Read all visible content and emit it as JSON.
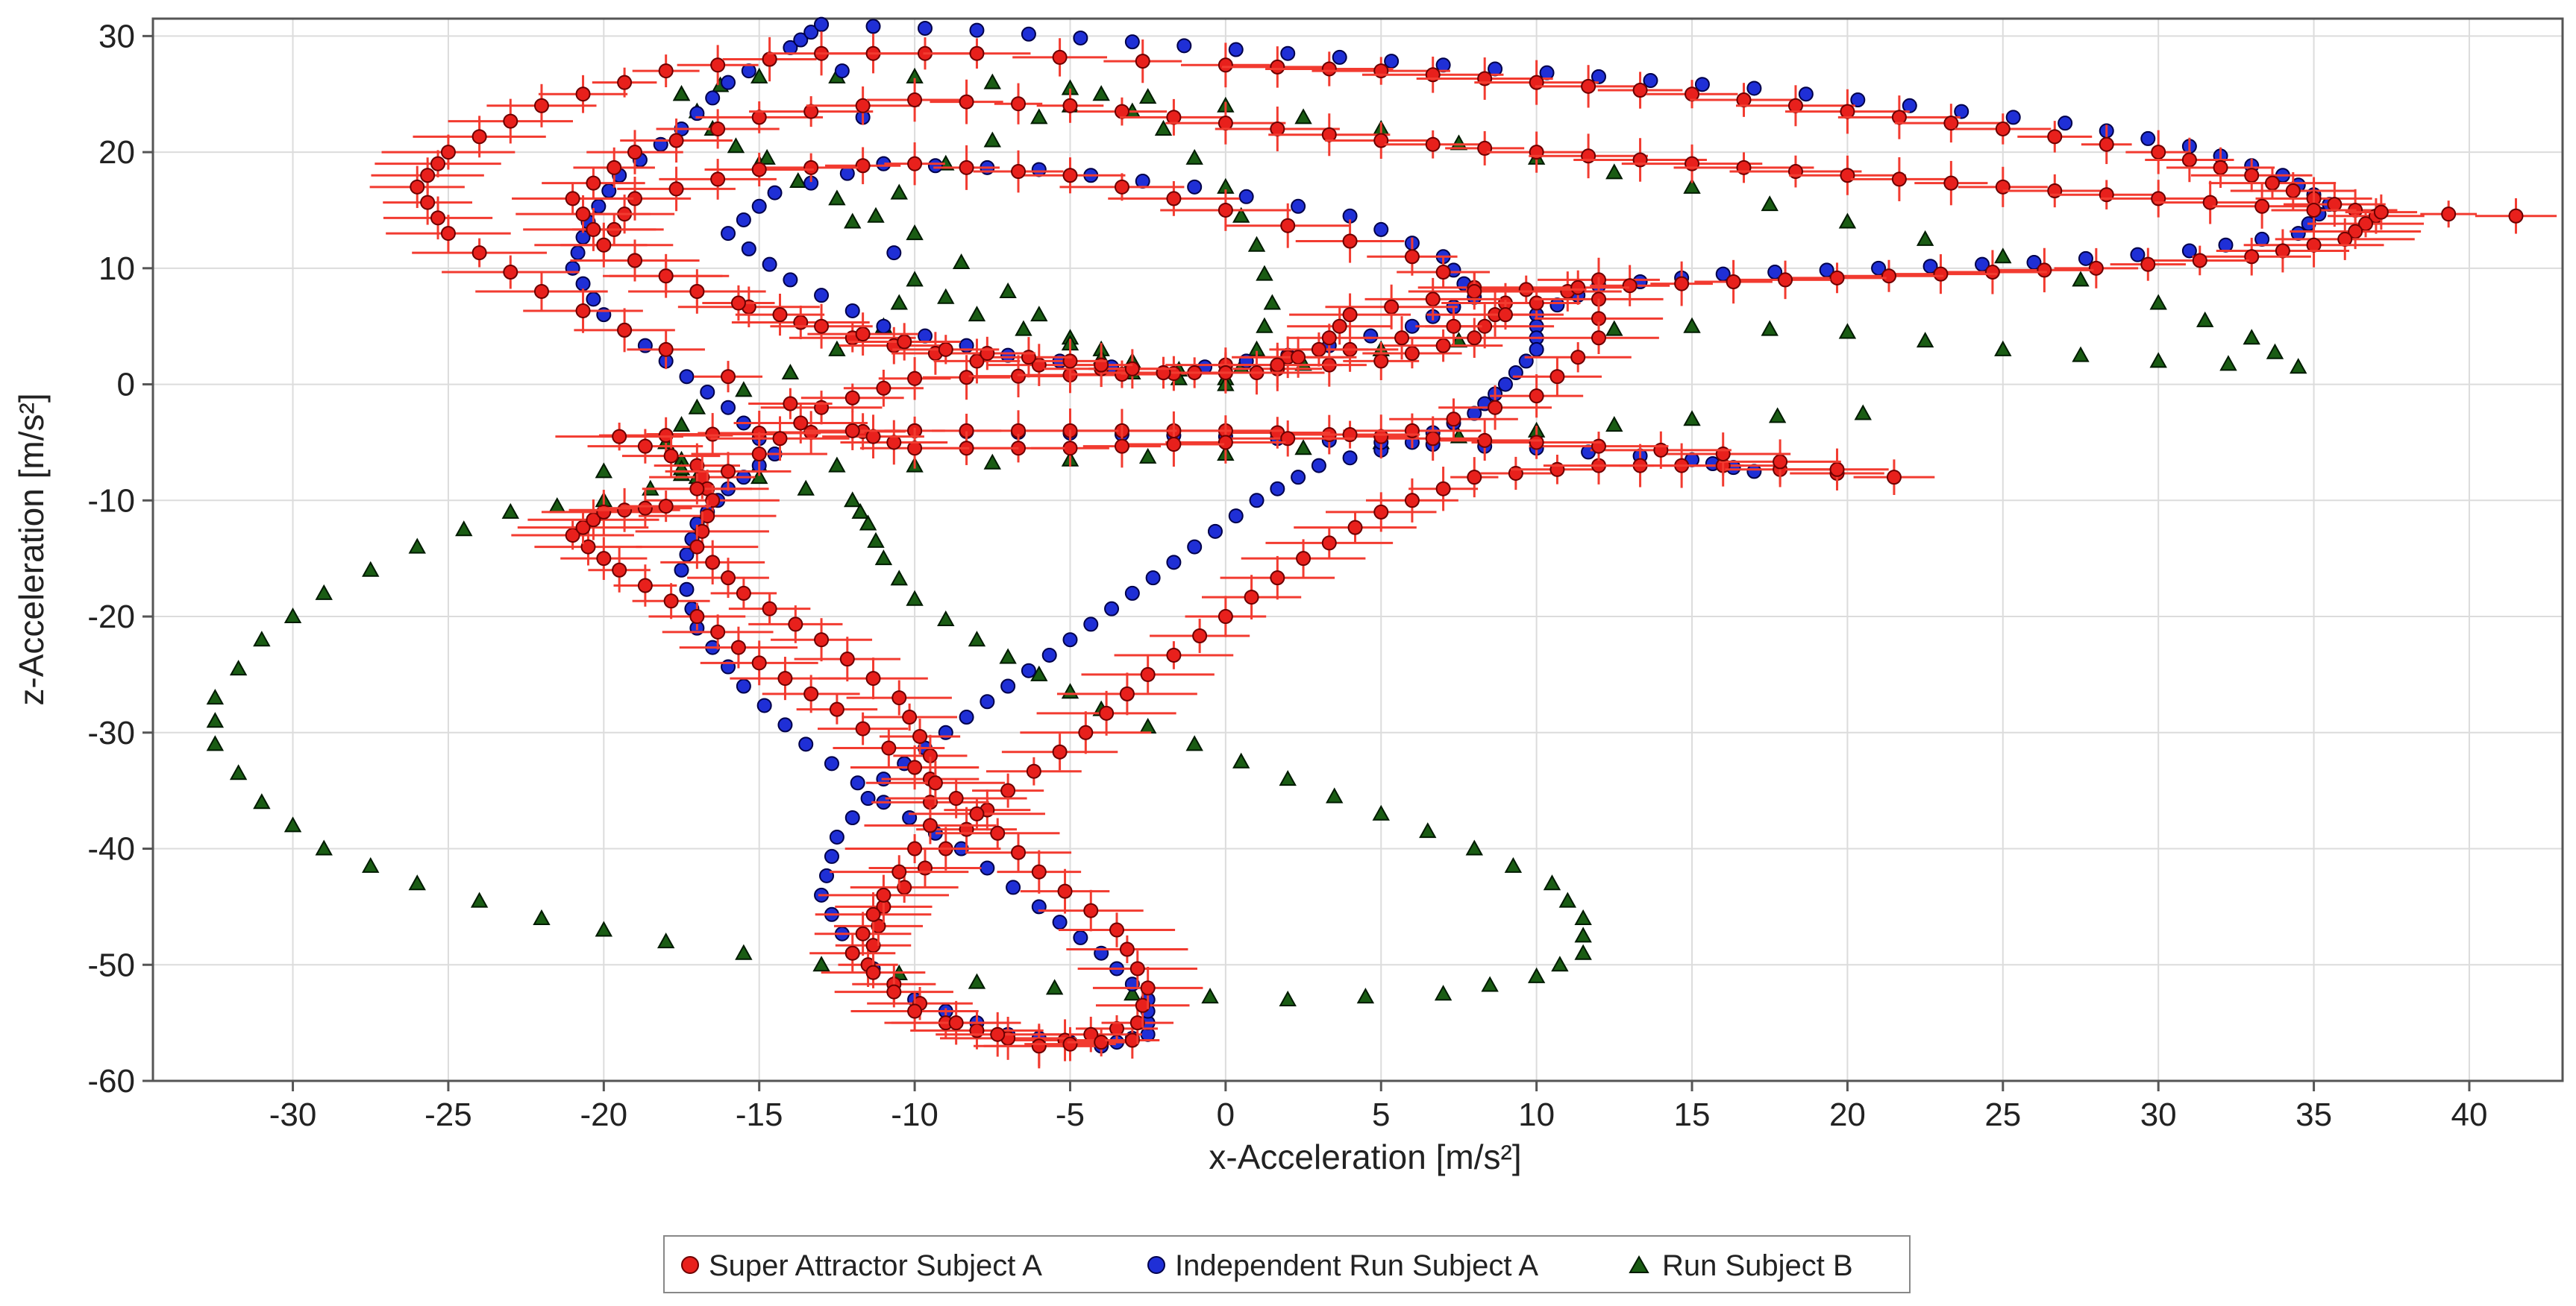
{
  "chart_data": {
    "type": "scatter",
    "title": "",
    "xlabel": "x-Acceleration [m/s²]",
    "ylabel": "z-Acceleration [m/s²]",
    "xlim": [
      -34.5,
      43
    ],
    "ylim": [
      -60,
      31.5
    ],
    "xticks": [
      -30,
      -25,
      -20,
      -15,
      -10,
      -5,
      0,
      5,
      10,
      15,
      20,
      25,
      30,
      35,
      40
    ],
    "yticks": [
      -60,
      -50,
      -40,
      -30,
      -20,
      -10,
      0,
      10,
      20,
      30
    ],
    "grid": true,
    "legend_position": "bottom-center",
    "series": [
      {
        "name": "Super Attractor Subject A",
        "color": "#e8201c",
        "marker": "circle",
        "error_bars": "horizontal and vertical",
        "points": [
          [
            -3.5,
            -55.5
          ],
          [
            -6,
            -57
          ],
          [
            -9,
            -55
          ],
          [
            -11.5,
            -50
          ],
          [
            -11,
            -45
          ],
          [
            -9,
            -40
          ],
          [
            -7,
            -35
          ],
          [
            -4.5,
            -30
          ],
          [
            -2.5,
            -25
          ],
          [
            0,
            -20
          ],
          [
            2.5,
            -15
          ],
          [
            5,
            -11
          ],
          [
            8,
            -8
          ],
          [
            12,
            -7
          ],
          [
            16,
            -7
          ],
          [
            21.5,
            -8
          ],
          [
            16,
            -6
          ],
          [
            10,
            -5
          ],
          [
            5,
            -4.5
          ],
          [
            0,
            -4
          ],
          [
            -5,
            -4
          ],
          [
            -10,
            -4
          ],
          [
            -15,
            -4.2
          ],
          [
            -19.5,
            -4.5
          ],
          [
            -17,
            -7
          ],
          [
            -16.5,
            -10
          ],
          [
            -17,
            -14
          ],
          [
            -15.5,
            -18
          ],
          [
            -13,
            -22
          ],
          [
            -10.5,
            -27
          ],
          [
            -9.5,
            -32
          ],
          [
            -9.5,
            -38
          ],
          [
            -11,
            -44
          ],
          [
            -12,
            -49
          ],
          [
            -10,
            -54
          ],
          [
            -6,
            -57
          ],
          [
            -3,
            -56.5
          ],
          [
            -2.5,
            -52
          ],
          [
            -3.5,
            -47
          ],
          [
            -6,
            -42
          ],
          [
            -8,
            -37
          ],
          [
            -10,
            -33
          ],
          [
            -12.5,
            -28
          ],
          [
            -15,
            -24
          ],
          [
            -17,
            -20
          ],
          [
            -19.5,
            -16
          ],
          [
            -21,
            -13
          ],
          [
            -20,
            -11
          ],
          [
            -18,
            -10.5
          ],
          [
            -15,
            -6
          ],
          [
            -13,
            -2
          ],
          [
            -10,
            0.5
          ],
          [
            -5,
            0.8
          ],
          [
            0,
            1
          ],
          [
            5,
            2
          ],
          [
            8,
            4
          ],
          [
            9,
            7
          ],
          [
            6,
            11
          ],
          [
            0,
            15
          ],
          [
            -5,
            18
          ],
          [
            -10,
            19
          ],
          [
            -15,
            18.5
          ],
          [
            -19,
            16
          ],
          [
            -20,
            12
          ],
          [
            -17,
            8
          ],
          [
            -12,
            4
          ],
          [
            -8,
            2
          ],
          [
            -2,
            1
          ],
          [
            4,
            3
          ],
          [
            9,
            6
          ],
          [
            12,
            9
          ],
          [
            12,
            4
          ],
          [
            10,
            -1
          ],
          [
            6,
            -4
          ],
          [
            0,
            -5
          ],
          [
            -5,
            -5.5
          ],
          [
            -10,
            -5.5
          ],
          [
            -12,
            -4
          ],
          [
            -18,
            3
          ],
          [
            -22,
            8
          ],
          [
            -25,
            13
          ],
          [
            -26,
            17
          ],
          [
            -25,
            20
          ],
          [
            -22,
            24
          ],
          [
            -18,
            27
          ],
          [
            -13,
            28.5
          ],
          [
            -8,
            28.5
          ],
          [
            0,
            27.5
          ],
          [
            5,
            27
          ],
          [
            10,
            26
          ],
          [
            15,
            25
          ],
          [
            20,
            23.5
          ],
          [
            25,
            22
          ],
          [
            30,
            20
          ],
          [
            33,
            18
          ],
          [
            35,
            16
          ],
          [
            37,
            14.5
          ],
          [
            36,
            12.5
          ],
          [
            33,
            11
          ],
          [
            28,
            10
          ],
          [
            23,
            9.5
          ],
          [
            18,
            9
          ],
          [
            13,
            8.5
          ],
          [
            8,
            8
          ],
          [
            4,
            6
          ],
          [
            3,
            3
          ],
          [
            1,
            1
          ],
          [
            -2,
            1
          ],
          [
            -5,
            2
          ],
          [
            -9,
            3
          ],
          [
            -13,
            5
          ],
          [
            -17,
            8
          ],
          [
            -20,
            12
          ],
          [
            -21,
            16
          ],
          [
            -19,
            20
          ],
          [
            -15,
            23
          ],
          [
            -10,
            24.5
          ],
          [
            -5,
            24
          ],
          [
            0,
            22.5
          ],
          [
            5,
            21
          ],
          [
            10,
            20
          ],
          [
            15,
            19
          ],
          [
            20,
            18
          ],
          [
            25,
            17
          ],
          [
            30,
            16
          ],
          [
            35,
            15
          ],
          [
            41.5,
            14.5
          ]
        ]
      },
      {
        "name": "Independent Run Subject A",
        "color": "#1f2fd6",
        "marker": "circle",
        "points": [
          [
            -13,
            31
          ],
          [
            -8,
            30.5
          ],
          [
            -3,
            29.5
          ],
          [
            2,
            28.5
          ],
          [
            7,
            27.5
          ],
          [
            12,
            26.5
          ],
          [
            17,
            25.5
          ],
          [
            22,
            24
          ],
          [
            27,
            22.5
          ],
          [
            31,
            20.5
          ],
          [
            34,
            18
          ],
          [
            35.5,
            15.5
          ],
          [
            34.5,
            13
          ],
          [
            31,
            11.5
          ],
          [
            26,
            10.5
          ],
          [
            21,
            10
          ],
          [
            16,
            9.5
          ],
          [
            12,
            8.5
          ],
          [
            10,
            6
          ],
          [
            10,
            3
          ],
          [
            9,
            0
          ],
          [
            8,
            -2.5
          ],
          [
            6,
            -5
          ],
          [
            3,
            -7
          ],
          [
            1,
            -10
          ],
          [
            -1,
            -14
          ],
          [
            -3,
            -18
          ],
          [
            -5,
            -22
          ],
          [
            -7,
            -26
          ],
          [
            -9,
            -30
          ],
          [
            -11,
            -34
          ],
          [
            -12.5,
            -39
          ],
          [
            -13,
            -44
          ],
          [
            -12,
            -49
          ],
          [
            -10,
            -53
          ],
          [
            -7,
            -56
          ],
          [
            -4,
            -57
          ],
          [
            -2.5,
            -56
          ],
          [
            -2.5,
            -53
          ],
          [
            -4,
            -49
          ],
          [
            -6,
            -45
          ],
          [
            -8.5,
            -40
          ],
          [
            -11,
            -36
          ],
          [
            -13.5,
            -31
          ],
          [
            -15.5,
            -26
          ],
          [
            -17,
            -21
          ],
          [
            -17.5,
            -16
          ],
          [
            -17,
            -12
          ],
          [
            -16,
            -9
          ],
          [
            -14.5,
            -6
          ],
          [
            -16,
            -2
          ],
          [
            -18,
            2
          ],
          [
            -20,
            6
          ],
          [
            -21,
            10
          ],
          [
            -20.5,
            14
          ],
          [
            -19.5,
            18
          ],
          [
            -17.5,
            22
          ],
          [
            -16,
            26
          ],
          [
            -14,
            29
          ],
          [
            -13,
            31
          ],
          [
            -11,
            19
          ],
          [
            -6,
            18.5
          ],
          [
            -1,
            17
          ],
          [
            4,
            14.5
          ],
          [
            7,
            11
          ],
          [
            8,
            7.5
          ],
          [
            6,
            5
          ],
          [
            2,
            2.5
          ],
          [
            -2,
            1
          ],
          [
            -7,
            2.5
          ],
          [
            -11,
            5
          ],
          [
            -14,
            9
          ],
          [
            -16,
            13
          ],
          [
            -14.5,
            16.5
          ],
          [
            -11,
            19
          ],
          [
            -10,
            -4
          ],
          [
            -5,
            -4.2
          ],
          [
            0,
            -4.5
          ],
          [
            5,
            -5
          ],
          [
            10,
            -5.5
          ],
          [
            15,
            -6.5
          ],
          [
            17,
            -7.5
          ]
        ]
      },
      {
        "name": "Run Subject B",
        "color": "#1a5c14",
        "marker": "triangle",
        "points": [
          [
            -17.5,
            25
          ],
          [
            -15,
            26.5
          ],
          [
            -10,
            26.5
          ],
          [
            -5,
            25.5
          ],
          [
            0,
            24
          ],
          [
            5,
            22
          ],
          [
            10,
            19.5
          ],
          [
            15,
            17
          ],
          [
            20,
            14
          ],
          [
            25,
            11
          ],
          [
            30,
            7
          ],
          [
            33,
            4
          ],
          [
            34.5,
            1.5
          ],
          [
            30,
            2
          ],
          [
            25,
            3
          ],
          [
            20,
            4.5
          ],
          [
            15,
            5
          ],
          [
            10,
            4.5
          ],
          [
            5,
            3
          ],
          [
            0,
            0.5
          ],
          [
            -3,
            2
          ],
          [
            -5,
            4
          ],
          [
            -7,
            8
          ],
          [
            -10,
            13
          ],
          [
            -12.5,
            16
          ],
          [
            -15,
            19
          ],
          [
            -16.5,
            22
          ],
          [
            -17.5,
            25
          ],
          [
            -12,
            14
          ],
          [
            -9,
            19
          ],
          [
            -6,
            23
          ],
          [
            -4,
            25
          ],
          [
            -2,
            22
          ],
          [
            0,
            17
          ],
          [
            1,
            12
          ],
          [
            1.5,
            7
          ],
          [
            1,
            3
          ],
          [
            0,
            0
          ],
          [
            -3,
            1
          ],
          [
            -5,
            3.5
          ],
          [
            -8,
            6
          ],
          [
            -10,
            9
          ],
          [
            -11,
            5
          ],
          [
            -14,
            1
          ],
          [
            -17,
            -2
          ],
          [
            -18,
            -5
          ],
          [
            -17,
            -8
          ],
          [
            -20,
            -10
          ],
          [
            -23,
            -11
          ],
          [
            -26,
            -14
          ],
          [
            -29,
            -18
          ],
          [
            -31,
            -22
          ],
          [
            -32.5,
            -27
          ],
          [
            -32.5,
            -31
          ],
          [
            -31,
            -36
          ],
          [
            -29,
            -40
          ],
          [
            -26,
            -43
          ],
          [
            -22,
            -46
          ],
          [
            -18,
            -48
          ],
          [
            -13,
            -50
          ],
          [
            -8,
            -51.5
          ],
          [
            -3,
            -52.5
          ],
          [
            2,
            -53
          ],
          [
            7,
            -52.5
          ],
          [
            10,
            -51
          ],
          [
            11.5,
            -49
          ],
          [
            11.5,
            -46
          ],
          [
            10.5,
            -43
          ],
          [
            8,
            -40
          ],
          [
            5,
            -37
          ],
          [
            2,
            -34
          ],
          [
            -1,
            -31
          ],
          [
            -4,
            -28
          ],
          [
            -6,
            -25
          ],
          [
            -8,
            -22
          ],
          [
            -10,
            -18.5
          ],
          [
            -11,
            -15
          ],
          [
            -11.5,
            -12
          ],
          [
            -12,
            -10
          ],
          [
            -15,
            -8
          ],
          [
            -20,
            -7.5
          ],
          [
            -15,
            -7
          ],
          [
            -10,
            -7
          ],
          [
            -5,
            -6.5
          ],
          [
            0,
            -6
          ],
          [
            5,
            -5
          ],
          [
            10,
            -4
          ],
          [
            15,
            -3
          ],
          [
            20.5,
            -2.5
          ]
        ]
      }
    ]
  },
  "legend": {
    "items": [
      {
        "label": "Super Attractor Subject A",
        "color": "#e8201c",
        "marker": "circle"
      },
      {
        "label": "Independent Run Subject A",
        "color": "#1f2fd6",
        "marker": "circle"
      },
      {
        "label": "Run Subject B",
        "color": "#1a5c14",
        "marker": "triangle"
      }
    ]
  }
}
